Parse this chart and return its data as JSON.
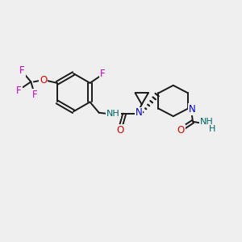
{
  "background_color": "#efefef",
  "bond_color": "#1a1a1a",
  "bond_width": 1.4,
  "F_color": "#cc00cc",
  "O_color": "#dd0000",
  "N_color": "#0000cc",
  "NH_color": "#006666",
  "figsize": [
    3.0,
    3.0
  ],
  "dpi": 100,
  "xlim": [
    0,
    10
  ],
  "ylim": [
    0,
    10
  ]
}
